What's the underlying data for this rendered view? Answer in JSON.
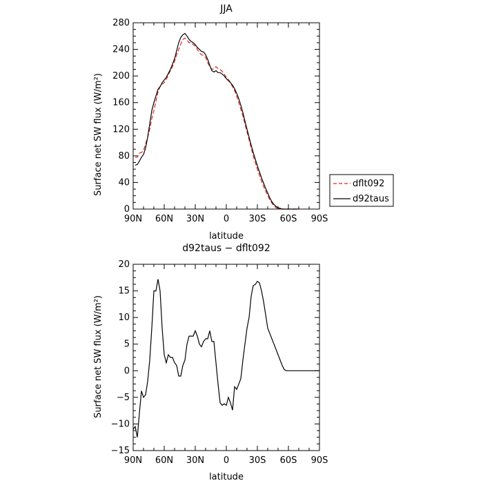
{
  "chart_data": [
    {
      "type": "line",
      "title": "JJA",
      "xlabel": "latitude",
      "ylabel": "Surface net SW flux (W/m²)",
      "x_reversed": true,
      "xlim": [
        90,
        -90
      ],
      "ylim": [
        0,
        280
      ],
      "x_ticks": [
        90,
        60,
        30,
        0,
        -30,
        -60,
        -90
      ],
      "x_tick_labels": [
        "90N",
        "60N",
        "30N",
        "0",
        "30S",
        "60S",
        "90S"
      ],
      "y_ticks": [
        0,
        40,
        80,
        120,
        160,
        200,
        240,
        280
      ],
      "y_tick_labels": [
        "0",
        "40",
        "80",
        "120",
        "160",
        "200",
        "240",
        "280"
      ],
      "legend_position": "outside-right",
      "series": [
        {
          "name": "dflt092",
          "color": "#e0201b",
          "dash": "dashed",
          "x": [
            88,
            86,
            84,
            82,
            80,
            78,
            76,
            74,
            72,
            70,
            68,
            66,
            64,
            62,
            60,
            58,
            56,
            54,
            52,
            50,
            48,
            46,
            44,
            42,
            40,
            38,
            36,
            34,
            32,
            30,
            28,
            26,
            24,
            22,
            20,
            18,
            16,
            14,
            12,
            10,
            8,
            6,
            4,
            2,
            0,
            -2,
            -4,
            -6,
            -8,
            -10,
            -12,
            -14,
            -16,
            -18,
            -20,
            -22,
            -24,
            -26,
            -28,
            -30,
            -32,
            -34,
            -36,
            -38,
            -40,
            -42,
            -44,
            -46,
            -48,
            -50,
            -52,
            -54,
            -56,
            -58,
            -60,
            -62,
            -64,
            -66,
            -68,
            -70
          ],
          "y": [
            78,
            78,
            84,
            85,
            88,
            98,
            108,
            120,
            136,
            148,
            162,
            176,
            184,
            188,
            190,
            195,
            202,
            208,
            214,
            222,
            232,
            240,
            248,
            255,
            257,
            254,
            250,
            250,
            247,
            245,
            240,
            235,
            232,
            231,
            228,
            220,
            214,
            210,
            211,
            214,
            211,
            210,
            207,
            203,
            198,
            195,
            190,
            184,
            178,
            170,
            160,
            150,
            140,
            128,
            116,
            104,
            92,
            80,
            70,
            60,
            51,
            42,
            34,
            27,
            20,
            14,
            9,
            5,
            2,
            1,
            0,
            0,
            0,
            0,
            0,
            0,
            0,
            0,
            0,
            0
          ]
        },
        {
          "name": "d92taus",
          "color": "#000000",
          "dash": "solid",
          "x": [
            88,
            86,
            84,
            82,
            80,
            78,
            76,
            74,
            72,
            70,
            68,
            66,
            64,
            62,
            60,
            58,
            56,
            54,
            52,
            50,
            48,
            46,
            44,
            42,
            40,
            38,
            36,
            34,
            32,
            30,
            28,
            26,
            24,
            22,
            20,
            18,
            16,
            14,
            12,
            10,
            8,
            6,
            4,
            2,
            0,
            -2,
            -4,
            -6,
            -8,
            -10,
            -12,
            -14,
            -16,
            -18,
            -20,
            -22,
            -24,
            -26,
            -28,
            -30,
            -32,
            -34,
            -36,
            -38,
            -40,
            -42,
            -44,
            -46,
            -48,
            -50,
            -52,
            -54,
            -56,
            -58,
            -60,
            -62,
            -64,
            -66,
            -68,
            -70
          ],
          "y": [
            66,
            67,
            72,
            78,
            82,
            92,
            108,
            128,
            148,
            160,
            170,
            180,
            184,
            190,
            194,
            198,
            204,
            210,
            218,
            226,
            238,
            250,
            258,
            262,
            264,
            260,
            255,
            252,
            250,
            247,
            243,
            240,
            237,
            236,
            232,
            225,
            216,
            208,
            206,
            208,
            205,
            205,
            203,
            200,
            196,
            193,
            190,
            186,
            181,
            174,
            166,
            156,
            145,
            132,
            120,
            108,
            96,
            85,
            75,
            65,
            56,
            47,
            39,
            31,
            24,
            17,
            11,
            7,
            4,
            2,
            1,
            0,
            0,
            0,
            0,
            0,
            0,
            0,
            0,
            0
          ]
        }
      ]
    },
    {
      "type": "line",
      "title": "d92taus − dflt092",
      "xlabel": "latitude",
      "ylabel": "Surface net SW flux (W/m²)",
      "x_reversed": true,
      "xlim": [
        90,
        -90
      ],
      "ylim": [
        -15,
        20
      ],
      "x_ticks": [
        90,
        60,
        30,
        0,
        -30,
        -60,
        -90
      ],
      "x_tick_labels": [
        "90N",
        "60N",
        "30N",
        "0",
        "30S",
        "60S",
        "90S"
      ],
      "y_ticks": [
        -15,
        -10,
        -5,
        0,
        5,
        10,
        15,
        20
      ],
      "y_tick_labels": [
        "−15",
        "−10",
        "−5",
        "0",
        "5",
        "10",
        "15",
        "20"
      ],
      "series": [
        {
          "color": "#000000",
          "dash": "solid",
          "x": [
            90,
            88,
            86,
            84,
            82,
            80,
            78,
            76,
            74,
            72,
            70,
            68,
            66,
            64,
            62,
            60,
            58,
            56,
            54,
            52,
            50,
            48,
            46,
            44,
            42,
            40,
            38,
            36,
            34,
            32,
            30,
            28,
            26,
            24,
            22,
            20,
            18,
            16,
            14,
            12,
            10,
            8,
            6,
            4,
            2,
            0,
            -2,
            -4,
            -6,
            -8,
            -10,
            -12,
            -14,
            -16,
            -18,
            -20,
            -22,
            -24,
            -26,
            -28,
            -30,
            -32,
            -34,
            -36,
            -38,
            -40,
            -42,
            -44,
            -46,
            -48,
            -50,
            -52,
            -54,
            -56,
            -58,
            -60,
            -62,
            -64,
            -66,
            -68,
            -70,
            -75,
            -80,
            -85,
            -90
          ],
          "y": [
            -11,
            -10.5,
            -12.5,
            -8,
            -3.8,
            -5,
            -4.5,
            -2,
            2,
            8,
            15,
            15,
            17.2,
            15,
            8,
            3,
            1.5,
            3,
            2.5,
            2.5,
            1.5,
            1,
            -1,
            -1,
            1,
            2,
            5,
            6.5,
            6.5,
            6.5,
            7.5,
            6.5,
            5,
            4.5,
            5.5,
            6,
            6,
            7.5,
            5.5,
            5.5,
            1.5,
            -2.5,
            -6,
            -6.5,
            -6.2,
            -6.5,
            -5,
            -6,
            -7.4,
            -3,
            -3.5,
            -2.5,
            -1.5,
            2,
            5,
            8,
            10,
            14,
            16,
            16.2,
            16.8,
            16.5,
            15,
            13,
            10.5,
            8,
            7,
            6,
            5,
            4,
            3,
            2,
            1,
            0.2,
            0,
            0,
            0,
            0,
            0,
            0,
            0,
            0,
            0,
            0,
            0
          ]
        }
      ]
    }
  ]
}
